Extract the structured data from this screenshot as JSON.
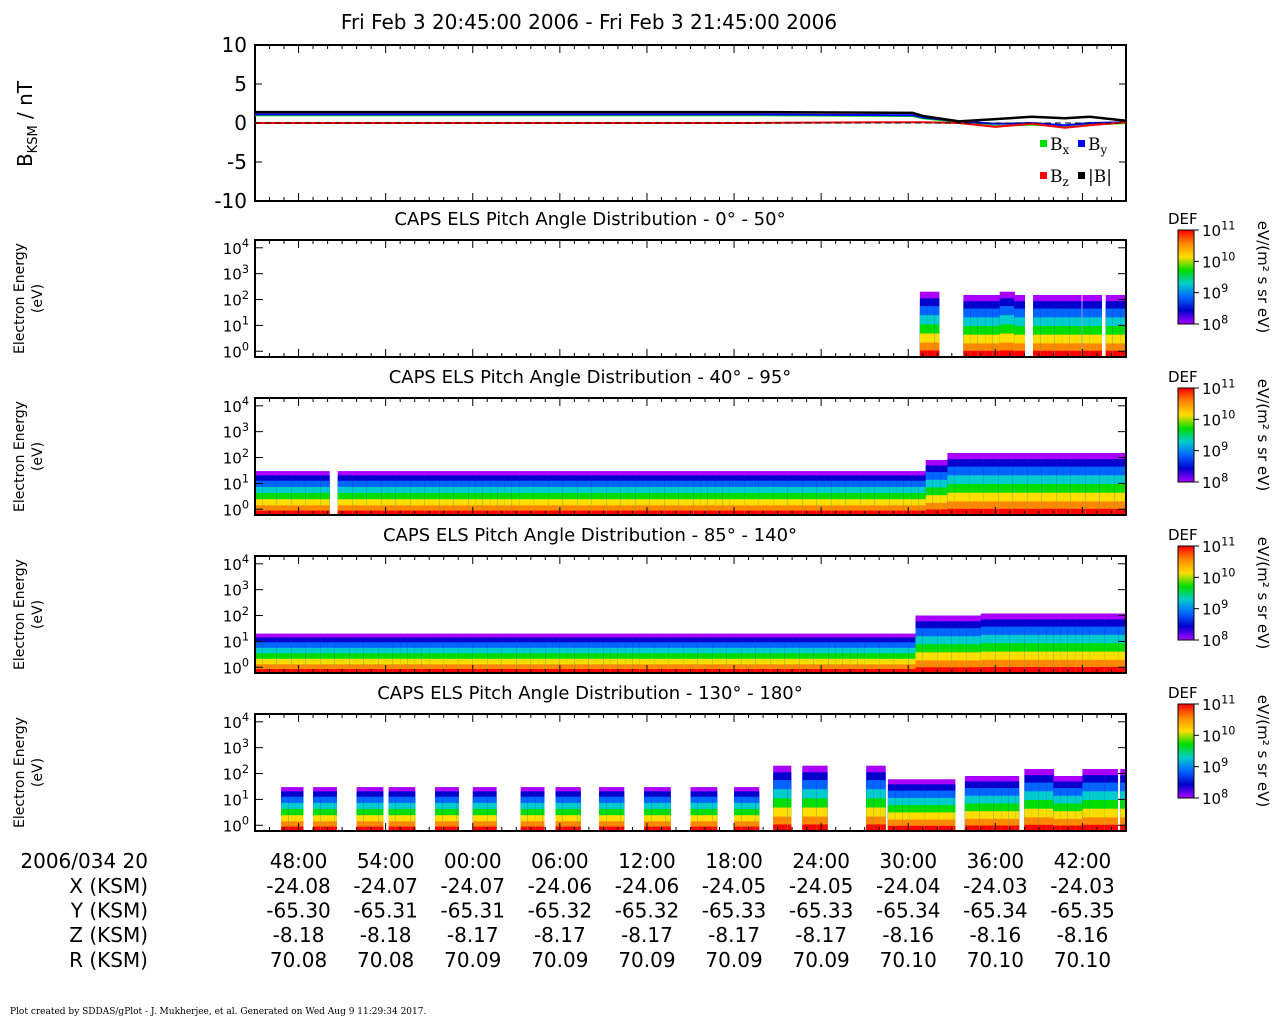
{
  "title": "Fri Feb 3 20:45:00 2006 - Fri Feb 3 21:45:00 2006",
  "footer": "Plot created by SDDAS/gPlot - J. Mukherjee, et al.  Generated on Wed Aug 9 11:29:34 2017.",
  "colors": {
    "bx": "#00dd00",
    "by": "#0000ff",
    "bz": "#ff0000",
    "bmag": "#000000",
    "colorbar": [
      "#ff0000",
      "#ff8800",
      "#ffdd00",
      "#00dd00",
      "#00cccc",
      "#0066ff",
      "#0000cc",
      "#aa00ff"
    ]
  },
  "mag_panel": {
    "ylabel": "BKSM / nT",
    "ylabel_main": "B",
    "ylabel_sub": "KSM",
    "ylabel_unit": " / nT",
    "legend": [
      {
        "label": "B",
        "sub": "x",
        "color": "#00dd00"
      },
      {
        "label": "B",
        "sub": "y",
        "color": "#0000ff"
      },
      {
        "label": "B",
        "sub": "z",
        "color": "#ff0000"
      },
      {
        "label": "|B|",
        "sub": "",
        "color": "#000000"
      }
    ]
  },
  "spectrogram_common": {
    "ylabel_line1": "Electron Energy",
    "ylabel_line2": "(eV)",
    "colorbar_title": "DEF",
    "colorbar_unit": "eV/(m² s sr eV)",
    "ytick_labels": [
      {
        "b": "10",
        "e": "0"
      },
      {
        "b": "10",
        "e": "1"
      },
      {
        "b": "10",
        "e": "2"
      },
      {
        "b": "10",
        "e": "3"
      },
      {
        "b": "10",
        "e": "4"
      }
    ],
    "colorbar_ticks": [
      {
        "b": "10",
        "e": "8"
      },
      {
        "b": "10",
        "e": "9"
      },
      {
        "b": "10",
        "e": "10"
      },
      {
        "b": "10",
        "e": "11"
      }
    ]
  },
  "ephemeris": {
    "date_label": "2006/034 20",
    "times": [
      "48:00",
      "54:00",
      "00:00",
      "06:00",
      "12:00",
      "18:00",
      "24:00",
      "30:00",
      "36:00",
      "42:00"
    ],
    "rows": [
      {
        "label": "X (KSM)",
        "values": [
          "-24.08",
          "-24.07",
          "-24.07",
          "-24.06",
          "-24.06",
          "-24.05",
          "-24.05",
          "-24.04",
          "-24.03",
          "-24.03"
        ]
      },
      {
        "label": "Y (KSM)",
        "values": [
          "-65.30",
          "-65.31",
          "-65.31",
          "-65.32",
          "-65.32",
          "-65.33",
          "-65.33",
          "-65.34",
          "-65.34",
          "-65.35"
        ]
      },
      {
        "label": "Z (KSM)",
        "values": [
          "-8.18",
          "-8.18",
          "-8.17",
          "-8.17",
          "-8.17",
          "-8.17",
          "-8.17",
          "-8.16",
          "-8.16",
          "-8.16"
        ]
      },
      {
        "label": "R (KSM)",
        "values": [
          "70.08",
          "70.08",
          "70.09",
          "70.09",
          "70.09",
          "70.09",
          "70.09",
          "70.10",
          "70.10",
          "70.10"
        ]
      }
    ]
  },
  "chart_data": [
    {
      "type": "line",
      "title": "",
      "ylabel": "BKSM / nT",
      "xlabel": "",
      "ylim": [
        -10,
        10
      ],
      "yticks": [
        10,
        5,
        0,
        -5,
        -10
      ],
      "xlim": [
        45,
        105
      ],
      "x": [
        45,
        56.3,
        67.7,
        79,
        90.3,
        91,
        93.5,
        96,
        98.5,
        100.8,
        102.5,
        105
      ],
      "series": [
        {
          "name": "Bx",
          "color": "#00dd00",
          "values": [
            1.0,
            1.0,
            1.0,
            1.0,
            0.9,
            0.6,
            0.1,
            -0.4,
            -0.2,
            -0.4,
            -0.2,
            0.0
          ]
        },
        {
          "name": "By",
          "color": "#0000ff",
          "values": [
            1.1,
            1.1,
            1.1,
            1.1,
            1.0,
            0.7,
            0.2,
            -0.1,
            0.0,
            -0.3,
            0.0,
            0.1
          ]
        },
        {
          "name": "Bz",
          "color": "#ff0000",
          "values": [
            0.0,
            0.0,
            0.0,
            0.0,
            0.1,
            0.1,
            0.0,
            -0.5,
            -0.1,
            -0.6,
            -0.3,
            0.1
          ]
        },
        {
          "name": "|B|",
          "color": "#000000",
          "values": [
            1.4,
            1.4,
            1.4,
            1.4,
            1.3,
            0.9,
            0.2,
            0.5,
            0.8,
            0.6,
            0.8,
            0.3
          ]
        }
      ]
    },
    {
      "type": "heatmap",
      "title": "CAPS ELS Pitch Angle Distribution - 0° - 50°",
      "ylabel": "Electron Energy (eV)",
      "yscale": "log",
      "ylim": [
        0.6,
        20000
      ],
      "xlim": [
        45,
        105
      ],
      "colorbar": {
        "label": "DEF",
        "unit": "eV/(m² s sr eV)",
        "range": [
          100000000.0,
          100000000000.0
        ],
        "scale": "log"
      },
      "segments": [
        [
          90.8,
          92.1
        ],
        [
          93.8,
          98.0
        ],
        [
          98.6,
          101.9
        ],
        [
          102.0,
          103.3
        ],
        [
          103.6,
          105
        ]
      ],
      "upper_cutoff_eV": [
        [
          90.8,
          200
        ],
        [
          93.8,
          150
        ],
        [
          95.0,
          150
        ],
        [
          96.0,
          200
        ],
        [
          97.0,
          150
        ],
        [
          98.6,
          150
        ],
        [
          100.0,
          150
        ],
        [
          102.0,
          150
        ],
        [
          103.6,
          150
        ]
      ]
    },
    {
      "type": "heatmap",
      "title": "CAPS ELS Pitch Angle Distribution - 40° - 95°",
      "ylabel": "Electron Energy (eV)",
      "yscale": "log",
      "ylim": [
        0.6,
        20000
      ],
      "xlim": [
        45,
        105
      ],
      "colorbar": {
        "label": "DEF",
        "unit": "eV/(m² s sr eV)",
        "range": [
          100000000.0,
          100000000000.0
        ],
        "scale": "log"
      },
      "segments": [
        [
          45,
          50.1
        ],
        [
          50.7,
          105
        ]
      ],
      "upper_cutoff_eV": [
        [
          45,
          30
        ],
        [
          90.0,
          30
        ],
        [
          91.0,
          80
        ],
        [
          92.5,
          150
        ],
        [
          97.0,
          150
        ],
        [
          100.0,
          150
        ],
        [
          105,
          150
        ]
      ]
    },
    {
      "type": "heatmap",
      "title": "CAPS ELS Pitch Angle Distribution - 85° - 140°",
      "ylabel": "Electron Energy (eV)",
      "yscale": "log",
      "ylim": [
        0.6,
        20000
      ],
      "xlim": [
        45,
        105
      ],
      "colorbar": {
        "label": "DEF",
        "unit": "eV/(m² s sr eV)",
        "range": [
          100000000.0,
          100000000000.0
        ],
        "scale": "log"
      },
      "segments": [
        [
          45,
          105
        ]
      ],
      "upper_cutoff_eV": [
        [
          45,
          20
        ],
        [
          89.8,
          20
        ],
        [
          90.4,
          100
        ],
        [
          95.0,
          120
        ],
        [
          105,
          120
        ]
      ]
    },
    {
      "type": "heatmap",
      "title": "CAPS ELS Pitch Angle Distribution - 130° - 180°",
      "ylabel": "Electron Energy (eV)",
      "yscale": "log",
      "ylim": [
        0.6,
        20000
      ],
      "xlim": [
        45,
        105
      ],
      "colorbar": {
        "label": "DEF",
        "unit": "eV/(m² s sr eV)",
        "range": [
          100000000.0,
          100000000000.0
        ],
        "scale": "log"
      },
      "segments": [
        [
          46.8,
          48.3
        ],
        [
          49.0,
          50.6
        ],
        [
          52.0,
          53.8
        ],
        [
          54.2,
          56.0
        ],
        [
          57.4,
          59.0
        ],
        [
          60.0,
          61.6
        ],
        [
          63.3,
          64.9
        ],
        [
          65.7,
          67.4
        ],
        [
          68.7,
          70.4
        ],
        [
          71.8,
          73.6
        ],
        [
          75.0,
          76.8
        ],
        [
          78.0,
          79.7
        ],
        [
          80.7,
          81.9
        ],
        [
          82.7,
          84.4
        ],
        [
          87.1,
          88.4
        ],
        [
          88.6,
          93.2
        ],
        [
          93.9,
          97.6
        ],
        [
          98.0,
          104.4
        ],
        [
          104.6,
          105
        ]
      ],
      "upper_cutoff_eV": [
        [
          46.8,
          30
        ],
        [
          80.7,
          200
        ],
        [
          87.1,
          200
        ],
        [
          88.6,
          60
        ],
        [
          93.9,
          80
        ],
        [
          98.0,
          150
        ],
        [
          100.0,
          80
        ],
        [
          102.0,
          150
        ],
        [
          105,
          150
        ]
      ]
    }
  ]
}
